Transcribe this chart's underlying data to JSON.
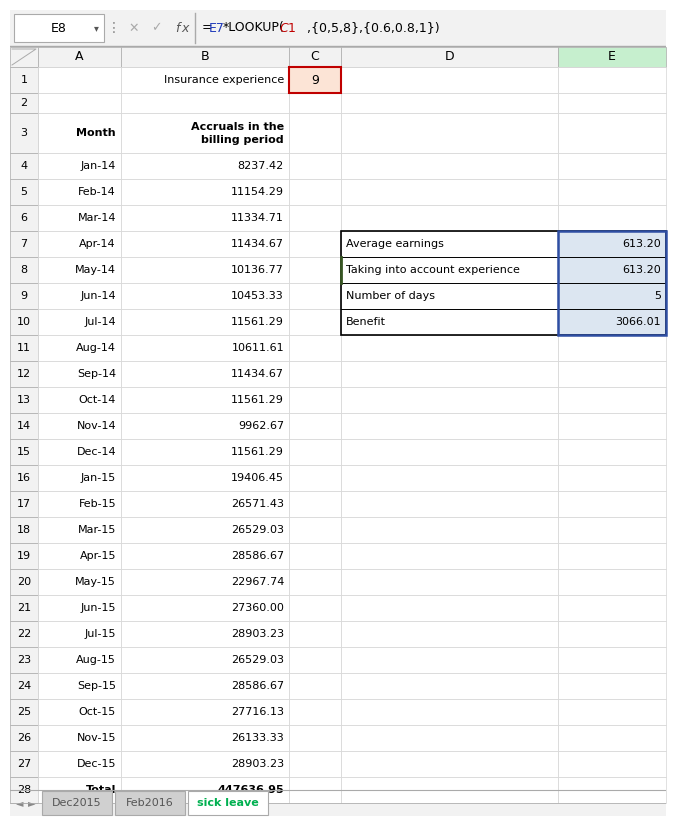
{
  "formula_bar_cell": "E8",
  "formula_bar_formula_parts": [
    {
      "text": "=",
      "color": "#000000"
    },
    {
      "text": "E7",
      "color": "#1f3abb"
    },
    {
      "text": "*LOOKUP(",
      "color": "#000000"
    },
    {
      "text": "$C$1",
      "color": "#c00000"
    },
    {
      "text": ",{0,5,8},{0.6,0.8,1})",
      "color": "#000000"
    }
  ],
  "col_labels": [
    "",
    "A",
    "B",
    "C",
    "D",
    "E"
  ],
  "rows": [
    {
      "row": 1,
      "A": "",
      "B": "Insurance experience",
      "C": "9",
      "D": "",
      "E": ""
    },
    {
      "row": 2,
      "A": "",
      "B": "",
      "C": "",
      "D": "",
      "E": ""
    },
    {
      "row": 3,
      "A": "Month",
      "B": "Accruals in the\nbilling period",
      "C": "",
      "D": "",
      "E": ""
    },
    {
      "row": 4,
      "A": "Jan-14",
      "B": "8237.42",
      "C": "",
      "D": "",
      "E": ""
    },
    {
      "row": 5,
      "A": "Feb-14",
      "B": "11154.29",
      "C": "",
      "D": "",
      "E": ""
    },
    {
      "row": 6,
      "A": "Mar-14",
      "B": "11334.71",
      "C": "",
      "D": "",
      "E": ""
    },
    {
      "row": 7,
      "A": "Apr-14",
      "B": "11434.67",
      "C": "",
      "D": "Average earnings",
      "E": "613.20"
    },
    {
      "row": 8,
      "A": "May-14",
      "B": "10136.77",
      "C": "",
      "D": "Taking into account experience",
      "E": "613.20"
    },
    {
      "row": 9,
      "A": "Jun-14",
      "B": "10453.33",
      "C": "",
      "D": "Number of days",
      "E": "5"
    },
    {
      "row": 10,
      "A": "Jul-14",
      "B": "11561.29",
      "C": "",
      "D": "Benefit",
      "E": "3066.01"
    },
    {
      "row": 11,
      "A": "Aug-14",
      "B": "10611.61",
      "C": "",
      "D": "",
      "E": ""
    },
    {
      "row": 12,
      "A": "Sep-14",
      "B": "11434.67",
      "C": "",
      "D": "",
      "E": ""
    },
    {
      "row": 13,
      "A": "Oct-14",
      "B": "11561.29",
      "C": "",
      "D": "",
      "E": ""
    },
    {
      "row": 14,
      "A": "Nov-14",
      "B": "9962.67",
      "C": "",
      "D": "",
      "E": ""
    },
    {
      "row": 15,
      "A": "Dec-14",
      "B": "11561.29",
      "C": "",
      "D": "",
      "E": ""
    },
    {
      "row": 16,
      "A": "Jan-15",
      "B": "19406.45",
      "C": "",
      "D": "",
      "E": ""
    },
    {
      "row": 17,
      "A": "Feb-15",
      "B": "26571.43",
      "C": "",
      "D": "",
      "E": ""
    },
    {
      "row": 18,
      "A": "Mar-15",
      "B": "26529.03",
      "C": "",
      "D": "",
      "E": ""
    },
    {
      "row": 19,
      "A": "Apr-15",
      "B": "28586.67",
      "C": "",
      "D": "",
      "E": ""
    },
    {
      "row": 20,
      "A": "May-15",
      "B": "22967.74",
      "C": "",
      "D": "",
      "E": ""
    },
    {
      "row": 21,
      "A": "Jun-15",
      "B": "27360.00",
      "C": "",
      "D": "",
      "E": ""
    },
    {
      "row": 22,
      "A": "Jul-15",
      "B": "28903.23",
      "C": "",
      "D": "",
      "E": ""
    },
    {
      "row": 23,
      "A": "Aug-15",
      "B": "26529.03",
      "C": "",
      "D": "",
      "E": ""
    },
    {
      "row": 24,
      "A": "Sep-15",
      "B": "28586.67",
      "C": "",
      "D": "",
      "E": ""
    },
    {
      "row": 25,
      "A": "Oct-15",
      "B": "27716.13",
      "C": "",
      "D": "",
      "E": ""
    },
    {
      "row": 26,
      "A": "Nov-15",
      "B": "26133.33",
      "C": "",
      "D": "",
      "E": ""
    },
    {
      "row": 27,
      "A": "Dec-15",
      "B": "28903.23",
      "C": "",
      "D": "",
      "E": ""
    },
    {
      "row": 28,
      "A": "Total",
      "B": "447636.95",
      "C": "",
      "D": "",
      "E": ""
    }
  ],
  "tabs": [
    "Dec2015",
    "Feb2016",
    "sick leave"
  ],
  "active_tab": "sick leave",
  "col_E_header_color": "#c6efce",
  "col_E_bg": "#ffffff",
  "grid_color": "#d4d4d4",
  "header_bg": "#f2f2f2",
  "active_tab_color": "#00b050",
  "c1_border_color": "#c00000",
  "c1_bg": "#ffd7d7",
  "tbl_border_color": "#000000",
  "e_col_select_color": "#b8cce4",
  "e_col_select_border": "#2e4ea3",
  "row8_left_border": "#375623"
}
